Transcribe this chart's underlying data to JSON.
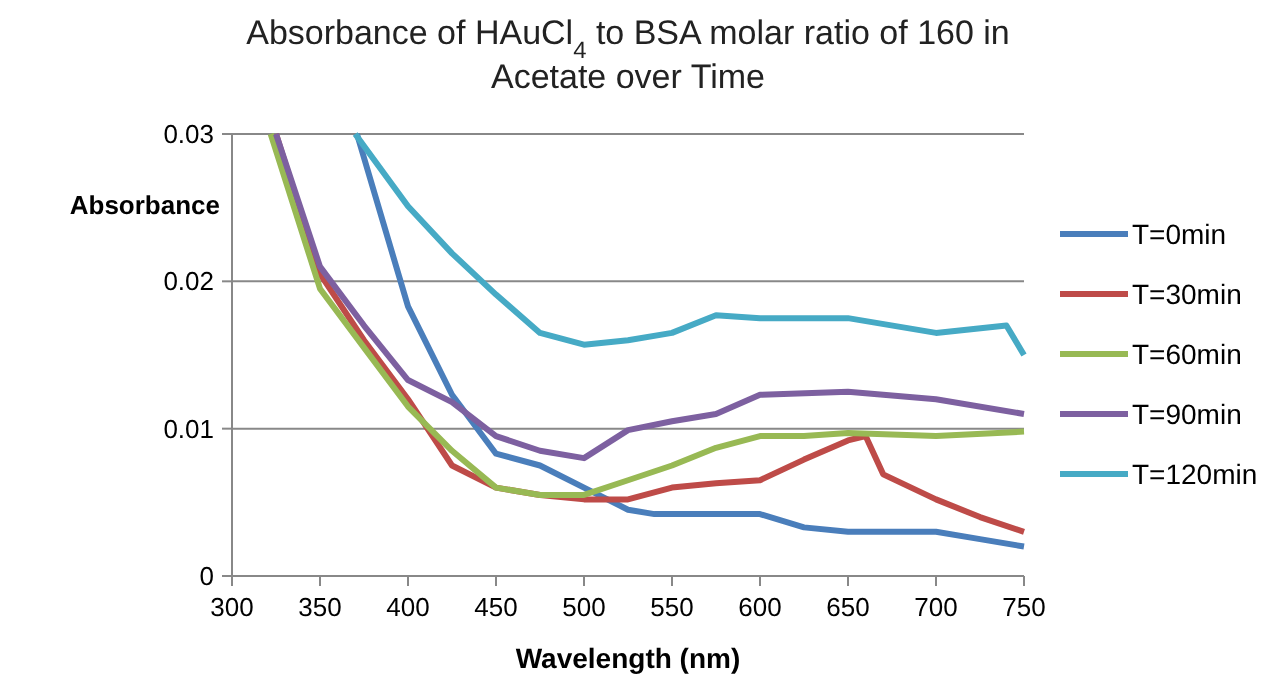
{
  "chart_data": {
    "type": "line",
    "title": "Absorbance of HAuCl$_{4}$ to BSA molar ratio of 160 in Acetate over Time",
    "xlabel": "Wavelength (nm)",
    "ylabel": "Absorbance",
    "xlim": [
      300,
      750
    ],
    "xticks": [
      300,
      350,
      400,
      450,
      500,
      550,
      600,
      650,
      700,
      750
    ],
    "ylim": [
      0,
      0.03
    ],
    "yticks": [
      0,
      0.01,
      0.02,
      0.03
    ],
    "grid": "y",
    "legend": "right",
    "series": [
      {
        "name": "T=0min",
        "color": "#4a7ebb",
        "x": [
          371,
          400,
          425,
          450,
          475,
          500,
          525,
          540,
          575,
          600,
          625,
          650,
          675,
          700,
          725,
          750
        ],
        "values": [
          0.03,
          0.0183,
          0.0123,
          0.0083,
          0.0075,
          0.006,
          0.0045,
          0.0042,
          0.0042,
          0.0042,
          0.0033,
          0.003,
          0.003,
          0.003,
          0.0025,
          0.002
        ]
      },
      {
        "name": "T=30min",
        "color": "#be4b48",
        "x": [
          325,
          350,
          375,
          400,
          425,
          450,
          475,
          500,
          525,
          550,
          575,
          600,
          625,
          650,
          660,
          670,
          700,
          725,
          750
        ],
        "values": [
          0.03,
          0.0205,
          0.016,
          0.012,
          0.0075,
          0.006,
          0.0055,
          0.0052,
          0.0052,
          0.006,
          0.0063,
          0.0065,
          0.0079,
          0.0092,
          0.0095,
          0.0069,
          0.0052,
          0.004,
          0.003
        ]
      },
      {
        "name": "T=60min",
        "color": "#98b954",
        "x": [
          322,
          350,
          375,
          400,
          425,
          450,
          475,
          500,
          525,
          550,
          575,
          600,
          625,
          650,
          700,
          750
        ],
        "values": [
          0.03,
          0.0195,
          0.0155,
          0.0115,
          0.0085,
          0.006,
          0.0055,
          0.0055,
          0.0065,
          0.0075,
          0.0087,
          0.0095,
          0.0095,
          0.0097,
          0.0095,
          0.0098
        ]
      },
      {
        "name": "T=90min",
        "color": "#7d60a0",
        "x": [
          325,
          350,
          375,
          400,
          425,
          450,
          475,
          500,
          525,
          550,
          575,
          600,
          650,
          700,
          750
        ],
        "values": [
          0.03,
          0.021,
          0.017,
          0.0133,
          0.0118,
          0.0095,
          0.0085,
          0.008,
          0.0099,
          0.0105,
          0.011,
          0.0123,
          0.0125,
          0.012,
          0.011
        ]
      },
      {
        "name": "T=120min",
        "color": "#46aac5",
        "x": [
          370,
          400,
          425,
          450,
          475,
          500,
          525,
          550,
          575,
          600,
          650,
          700,
          740,
          750
        ],
        "values": [
          0.03,
          0.0251,
          0.0219,
          0.0191,
          0.0165,
          0.0157,
          0.016,
          0.0165,
          0.0177,
          0.0175,
          0.0175,
          0.0165,
          0.017,
          0.015
        ]
      }
    ]
  }
}
